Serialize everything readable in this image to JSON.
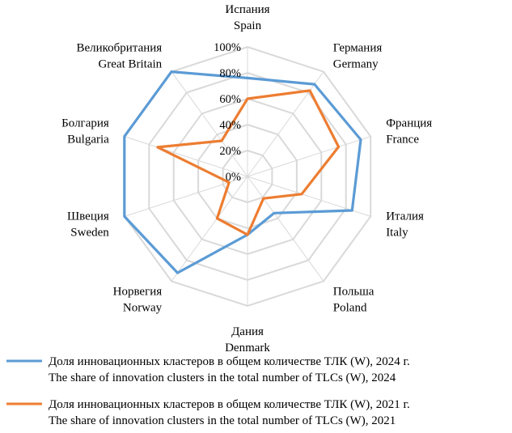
{
  "chart_data": {
    "type": "radar",
    "categories": [
      {
        "ru": "Испания",
        "en": "Spain"
      },
      {
        "ru": "Германия",
        "en": "Germany"
      },
      {
        "ru": "Франция",
        "en": "France"
      },
      {
        "ru": "Италия",
        "en": "Italy"
      },
      {
        "ru": "Польша",
        "en": "Poland"
      },
      {
        "ru": "Дания",
        "en": "Denmark"
      },
      {
        "ru": "Норвегия",
        "en": "Norway"
      },
      {
        "ru": "Швеция",
        "en": "Sweden"
      },
      {
        "ru": "Болгария",
        "en": "Bulgaria"
      },
      {
        "ru": "Великобритания",
        "en": "Great Britain"
      }
    ],
    "ticks": [
      "0%",
      "20%",
      "40%",
      "60%",
      "80%",
      "100%"
    ],
    "rlim": [
      0,
      100
    ],
    "grid": true,
    "legend_position": "bottom",
    "series": [
      {
        "name_ru": "Доля инновационных кластеров в общем количестве ТЛК (W), 2024 г.",
        "name_en": "The share of innovation clusters in the total number of TLCs (W), 2024",
        "color": "#5b9bd5",
        "values": [
          76,
          88,
          92,
          85,
          35,
          45,
          92,
          100,
          100,
          100
        ]
      },
      {
        "name_ru": "Доля инновационных кластеров в общем количестве ТЛК (W), 2021 г.",
        "name_en": "The share of innovation clusters in the total number of TLCs (W), 2021",
        "color": "#ed7d31",
        "values": [
          60,
          82,
          74,
          44,
          21,
          45,
          40,
          15,
          73,
          34
        ]
      }
    ]
  }
}
